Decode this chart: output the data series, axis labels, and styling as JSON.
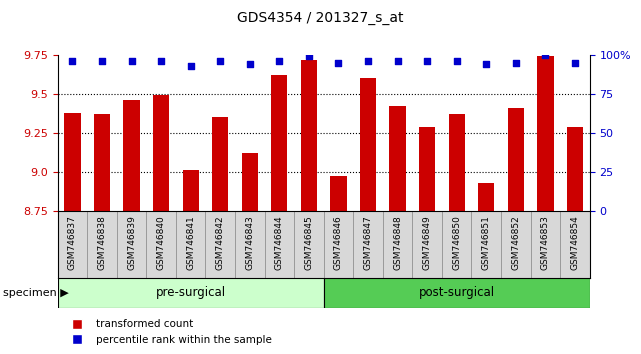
{
  "title": "GDS4354 / 201327_s_at",
  "samples": [
    "GSM746837",
    "GSM746838",
    "GSM746839",
    "GSM746840",
    "GSM746841",
    "GSM746842",
    "GSM746843",
    "GSM746844",
    "GSM746845",
    "GSM746846",
    "GSM746847",
    "GSM746848",
    "GSM746849",
    "GSM746850",
    "GSM746851",
    "GSM746852",
    "GSM746853",
    "GSM746854"
  ],
  "bar_values": [
    9.38,
    9.37,
    9.46,
    9.49,
    9.01,
    9.35,
    9.12,
    9.62,
    9.72,
    8.97,
    9.6,
    9.42,
    9.29,
    9.37,
    8.93,
    9.41,
    9.74,
    9.29
  ],
  "percentile_values": [
    96,
    96,
    96,
    96,
    93,
    96,
    94,
    96,
    99,
    95,
    96,
    96,
    96,
    96,
    94,
    95,
    100,
    95
  ],
  "ylim_left": [
    8.75,
    9.75
  ],
  "yticks_left": [
    8.75,
    9.0,
    9.25,
    9.5,
    9.75
  ],
  "ylim_right": [
    0,
    100
  ],
  "yticks_right": [
    0,
    25,
    50,
    75,
    100
  ],
  "yticklabels_right": [
    "0",
    "25",
    "50",
    "75",
    "100%"
  ],
  "bar_color": "#cc0000",
  "dot_color": "#0000cc",
  "pre_surgical_count": 9,
  "group_labels": [
    "pre-surgical",
    "post-surgical"
  ],
  "group_colors": [
    "#ccffcc",
    "#55cc55"
  ],
  "bar_width": 0.55,
  "legend_labels": [
    "transformed count",
    "percentile rank within the sample"
  ]
}
